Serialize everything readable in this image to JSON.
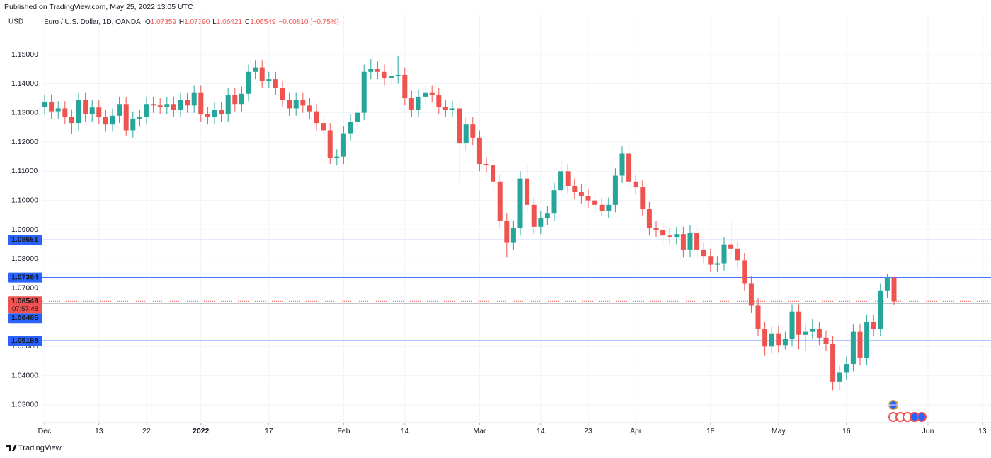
{
  "chart_data": {
    "type": "candlestick",
    "published": "Published on TradingView.com, May 25, 2022 13:05 UTC",
    "currency": "USD",
    "title": "Euro / U.S. Dollar, 1D, OANDA",
    "ohlc": [
      {
        "label": "O",
        "value": "1.07359"
      },
      {
        "label": "H",
        "value": "1.07390"
      },
      {
        "label": "L",
        "value": "1.06421"
      },
      {
        "label": "C",
        "value": "1.06549"
      }
    ],
    "change": "−0.00810 (−0.75%)",
    "brand": "TradingView",
    "up_color": "#26a69a",
    "down_color": "#ef5350",
    "grid": true,
    "ylim": [
      1.02394,
      1.16379
    ],
    "yticks": [
      {
        "value": 1.15,
        "label": "1.15000"
      },
      {
        "value": 1.14,
        "label": "1.14000"
      },
      {
        "value": 1.13,
        "label": "1.13000"
      },
      {
        "value": 1.12,
        "label": "1.12000"
      },
      {
        "value": 1.11,
        "label": "1.11000"
      },
      {
        "value": 1.1,
        "label": "1.10000"
      },
      {
        "value": 1.09,
        "label": "1.09000"
      },
      {
        "value": 1.08,
        "label": "1.08000"
      },
      {
        "value": 1.07,
        "label": "1.07000"
      },
      {
        "value": 1.05,
        "label": "1.05000"
      },
      {
        "value": 1.04,
        "label": "1.04000"
      },
      {
        "value": 1.03,
        "label": "1.03000"
      }
    ],
    "xticks": [
      {
        "value": 0,
        "label": "Dec"
      },
      {
        "value": 8,
        "label": "13"
      },
      {
        "value": 15,
        "label": "22"
      },
      {
        "value": 23,
        "label": "2022"
      },
      {
        "value": 33,
        "label": "17"
      },
      {
        "value": 44,
        "label": "Feb"
      },
      {
        "value": 53,
        "label": "14"
      },
      {
        "value": 64,
        "label": "Mar"
      },
      {
        "value": 73,
        "label": "14"
      },
      {
        "value": 80,
        "label": "23"
      },
      {
        "value": 87,
        "label": "Apr"
      },
      {
        "value": 98,
        "label": "18"
      },
      {
        "value": 108,
        "label": "May"
      },
      {
        "value": 118,
        "label": "16"
      },
      {
        "value": 130,
        "label": "Jun"
      },
      {
        "value": 138,
        "label": "13"
      }
    ],
    "hlines": [
      {
        "value": 1.08651,
        "color": "#2962ff"
      },
      {
        "value": 1.07364,
        "color": "#2962ff"
      },
      {
        "value": 1.05198,
        "color": "#2962ff"
      },
      {
        "value": 1.06485,
        "color": "#2962ff"
      }
    ],
    "last_price": 1.06549,
    "countdown": "07:57:48",
    "open": [
      1.132,
      1.1338,
      1.1305,
      1.1315,
      1.1287,
      1.1265,
      1.1345,
      1.1295,
      1.1318,
      1.1285,
      1.126,
      1.129,
      1.133,
      1.124,
      1.128,
      1.1285,
      1.133,
      1.1325,
      1.132,
      1.133,
      1.131,
      1.1345,
      1.1325,
      1.137,
      1.1295,
      1.1285,
      1.131,
      1.1295,
      1.136,
      1.133,
      1.1365,
      1.144,
      1.1455,
      1.141,
      1.1415,
      1.1385,
      1.1345,
      1.1315,
      1.1345,
      1.1325,
      1.1305,
      1.1265,
      1.124,
      1.1145,
      1.115,
      1.123,
      1.127,
      1.13,
      1.144,
      1.145,
      1.144,
      1.142,
      1.1425,
      1.143,
      1.135,
      1.131,
      1.1355,
      1.137,
      1.136,
      1.132,
      1.131,
      1.1315,
      1.1195,
      1.126,
      1.1215,
      1.1125,
      1.112,
      1.1065,
      1.093,
      1.0855,
      1.0905,
      1.1075,
      1.0985,
      1.091,
      1.094,
      1.0955,
      1.1035,
      1.11,
      1.105,
      1.103,
      1.1015,
      1.1,
      1.0985,
      1.0965,
      1.0985,
      1.1085,
      1.116,
      1.1065,
      1.1045,
      1.097,
      1.0905,
      1.09,
      1.088,
      1.0875,
      1.0885,
      1.083,
      1.089,
      1.083,
      1.081,
      1.078,
      1.0785,
      1.085,
      1.0835,
      1.0795,
      1.0715,
      1.064,
      1.056,
      1.05,
      1.0545,
      1.0505,
      1.0525,
      1.062,
      1.054,
      1.055,
      1.056,
      1.053,
      1.051,
      1.038,
      1.041,
      1.044,
      1.055,
      1.046,
      1.0585,
      1.056,
      1.069,
      1.07359
    ],
    "high": [
      1.1363,
      1.1363,
      1.134,
      1.134,
      1.1312,
      1.137,
      1.137,
      1.1343,
      1.1343,
      1.131,
      1.1315,
      1.1355,
      1.1355,
      1.1305,
      1.131,
      1.1355,
      1.1355,
      1.135,
      1.1355,
      1.1355,
      1.137,
      1.137,
      1.1395,
      1.1395,
      1.132,
      1.1335,
      1.1335,
      1.1385,
      1.1385,
      1.139,
      1.1465,
      1.148,
      1.148,
      1.144,
      1.144,
      1.141,
      1.137,
      1.137,
      1.137,
      1.135,
      1.133,
      1.129,
      1.1265,
      1.1175,
      1.1255,
      1.1295,
      1.1325,
      1.1465,
      1.1483,
      1.1475,
      1.1465,
      1.145,
      1.1495,
      1.1455,
      1.1375,
      1.138,
      1.1395,
      1.1395,
      1.1385,
      1.1345,
      1.134,
      1.134,
      1.1285,
      1.1285,
      1.124,
      1.115,
      1.1145,
      1.109,
      1.0955,
      1.093,
      1.11,
      1.112,
      1.101,
      1.0965,
      1.098,
      1.106,
      1.1137,
      1.1125,
      1.1075,
      1.1055,
      1.104,
      1.1025,
      1.101,
      1.101,
      1.111,
      1.1185,
      1.1185,
      1.109,
      1.107,
      1.0995,
      1.093,
      1.0925,
      1.0905,
      1.091,
      1.091,
      1.0915,
      1.0915,
      1.0855,
      1.0835,
      1.081,
      1.0875,
      1.0935,
      1.086,
      1.082,
      1.074,
      1.0665,
      1.0585,
      1.057,
      1.057,
      1.055,
      1.0645,
      1.0645,
      1.0575,
      1.0595,
      1.0585,
      1.0555,
      1.0535,
      1.0435,
      1.0465,
      1.0575,
      1.0575,
      1.061,
      1.061,
      1.0715,
      1.0748,
      1.0739
    ],
    "low": [
      1.1295,
      1.128,
      1.128,
      1.1262,
      1.1228,
      1.124,
      1.127,
      1.127,
      1.126,
      1.1235,
      1.1235,
      1.1265,
      1.1222,
      1.1215,
      1.1255,
      1.126,
      1.13,
      1.1295,
      1.1295,
      1.1285,
      1.1285,
      1.13,
      1.13,
      1.127,
      1.126,
      1.126,
      1.127,
      1.127,
      1.1305,
      1.1305,
      1.134,
      1.1415,
      1.1385,
      1.1385,
      1.136,
      1.132,
      1.129,
      1.129,
      1.13,
      1.128,
      1.124,
      1.1215,
      1.1125,
      1.112,
      1.1125,
      1.1205,
      1.1245,
      1.1275,
      1.1415,
      1.1415,
      1.1395,
      1.1395,
      1.14,
      1.1325,
      1.1285,
      1.1285,
      1.133,
      1.1335,
      1.1295,
      1.1285,
      1.1285,
      1.106,
      1.117,
      1.119,
      1.11,
      1.1095,
      1.104,
      1.0905,
      1.0805,
      1.083,
      1.088,
      1.096,
      1.0885,
      1.0885,
      1.0915,
      1.093,
      1.101,
      1.1025,
      1.1005,
      1.099,
      1.0975,
      1.096,
      1.0945,
      1.094,
      1.096,
      1.106,
      1.104,
      1.102,
      1.0945,
      1.088,
      1.0875,
      1.0855,
      1.085,
      1.085,
      1.0805,
      1.0805,
      1.0805,
      1.0785,
      1.0755,
      1.0755,
      1.076,
      1.081,
      1.077,
      1.069,
      1.0615,
      1.0535,
      1.047,
      1.0475,
      1.048,
      1.049,
      1.05,
      1.049,
      1.0485,
      1.0525,
      1.0505,
      1.0485,
      1.035,
      1.035,
      1.0385,
      1.0415,
      1.0435,
      1.0435,
      1.0535,
      1.0535,
      1.0665,
      1.06421
    ],
    "close": [
      1.1338,
      1.1305,
      1.1315,
      1.1287,
      1.1265,
      1.1345,
      1.1295,
      1.1318,
      1.1285,
      1.126,
      1.129,
      1.133,
      1.124,
      1.128,
      1.1285,
      1.133,
      1.1325,
      1.132,
      1.133,
      1.131,
      1.1345,
      1.1325,
      1.137,
      1.1295,
      1.1285,
      1.131,
      1.1295,
      1.136,
      1.133,
      1.1365,
      1.144,
      1.1455,
      1.141,
      1.1415,
      1.1385,
      1.1345,
      1.1315,
      1.1345,
      1.1325,
      1.1305,
      1.1265,
      1.124,
      1.1145,
      1.115,
      1.123,
      1.127,
      1.13,
      1.144,
      1.145,
      1.144,
      1.142,
      1.1425,
      1.143,
      1.135,
      1.131,
      1.1355,
      1.137,
      1.136,
      1.132,
      1.131,
      1.1315,
      1.1195,
      1.126,
      1.1215,
      1.1125,
      1.112,
      1.1065,
      1.093,
      1.0855,
      1.0905,
      1.1075,
      1.0985,
      1.091,
      1.094,
      1.0955,
      1.1035,
      1.11,
      1.105,
      1.103,
      1.1015,
      1.1,
      1.0985,
      1.0965,
      1.0985,
      1.1085,
      1.116,
      1.1065,
      1.1045,
      1.097,
      1.0905,
      1.09,
      1.088,
      1.0875,
      1.0885,
      1.083,
      1.089,
      1.083,
      1.081,
      1.078,
      1.0785,
      1.085,
      1.0835,
      1.0795,
      1.0715,
      1.064,
      1.056,
      1.05,
      1.0545,
      1.0505,
      1.0525,
      1.062,
      1.054,
      1.055,
      1.056,
      1.053,
      1.051,
      1.038,
      1.041,
      1.044,
      1.055,
      1.046,
      1.0585,
      1.056,
      1.069,
      1.07359,
      1.06549
    ]
  }
}
